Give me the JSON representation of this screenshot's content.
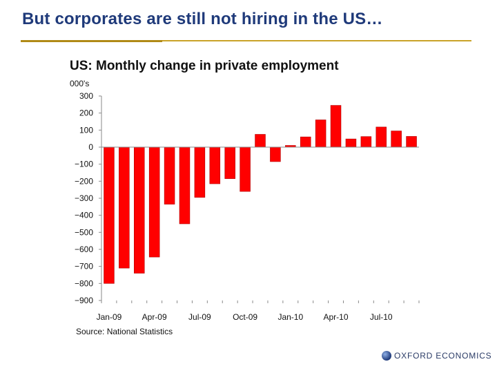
{
  "slide": {
    "title": "But corporates are still not hiring in the US…"
  },
  "logo": {
    "text": "OXFORD ECONOMICS",
    "icon": "globe-icon"
  },
  "colors": {
    "bar": "#ff0000",
    "bar_edge": "#b00000",
    "accent": "#c9a227",
    "title": "#1f3a7a"
  },
  "chart_data": {
    "type": "bar",
    "title": "US: Monthly change in private employment",
    "unit_label": "000's",
    "source": "Source: National Statistics",
    "ylim": [
      -900,
      300
    ],
    "yticks": [
      300,
      200,
      100,
      0,
      -100,
      -200,
      -300,
      -400,
      -500,
      -600,
      -700,
      -800,
      -900
    ],
    "x_tick_labels": [
      "Jan-09",
      "Apr-09",
      "Jul-09",
      "Oct-09",
      "Jan-10",
      "Apr-10",
      "Jul-10"
    ],
    "categories": [
      "Jan-09",
      "Feb-09",
      "Mar-09",
      "Apr-09",
      "May-09",
      "Jun-09",
      "Jul-09",
      "Aug-09",
      "Sep-09",
      "Oct-09",
      "Nov-09",
      "Dec-09",
      "Jan-10",
      "Feb-10",
      "Mar-10",
      "Apr-10",
      "May-10",
      "Jun-10",
      "Jul-10",
      "Aug-10",
      "Sep-10"
    ],
    "values": [
      -800,
      -710,
      -740,
      -645,
      -335,
      -450,
      -295,
      -215,
      -185,
      -260,
      75,
      -85,
      10,
      60,
      160,
      245,
      48,
      62,
      118,
      95,
      63
    ]
  }
}
